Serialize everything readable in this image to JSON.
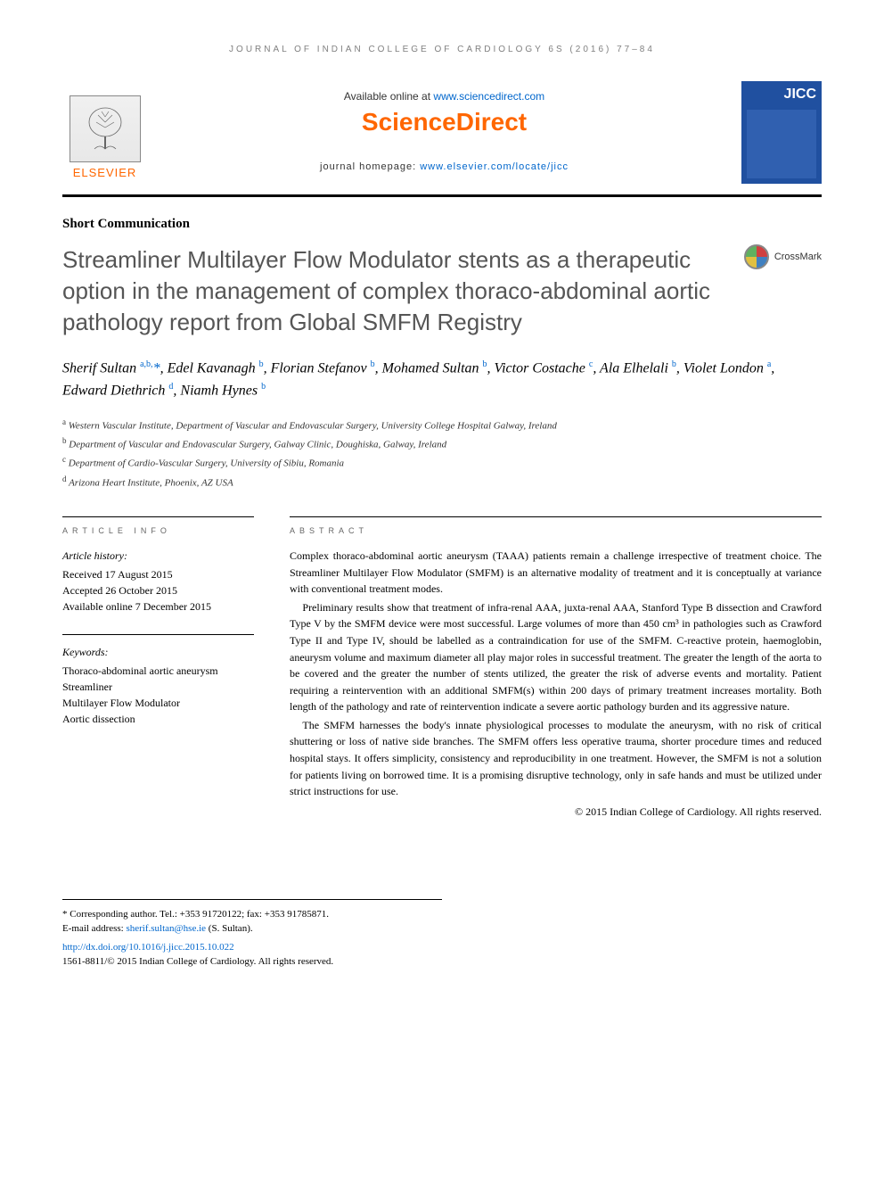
{
  "running_head": "JOURNAL OF INDIAN COLLEGE OF CARDIOLOGY 6S (2016) 77–84",
  "header": {
    "elsevier": "ELSEVIER",
    "available_prefix": "Available online at ",
    "available_link": "www.sciencedirect.com",
    "sciencedirect": "ScienceDirect",
    "homepage_prefix": "journal homepage: ",
    "homepage_link": "www.elsevier.com/locate/jicc",
    "jicc": "JICC"
  },
  "article_type": "Short Communication",
  "title": "Streamliner Multilayer Flow Modulator stents as a therapeutic option in the management of complex thoraco-abdominal aortic pathology report from Global SMFM Registry",
  "crossmark": "CrossMark",
  "authors_html": "Sherif Sultan <sup>a,b,</sup><span class='star'>*</span>, Edel Kavanagh <sup>b</sup>, Florian Stefanov <sup>b</sup>, Mohamed Sultan <sup>b</sup>, Victor Costache <sup>c</sup>, Ala Elhelali <sup>b</sup>, Violet London <sup>a</sup>, Edward Diethrich <sup>d</sup>, Niamh Hynes <sup>b</sup>",
  "affiliations": {
    "a": "Western Vascular Institute, Department of Vascular and Endovascular Surgery, University College Hospital Galway, Ireland",
    "b": "Department of Vascular and Endovascular Surgery, Galway Clinic, Doughiska, Galway, Ireland",
    "c": "Department of Cardio-Vascular Surgery, University of Sibiu, Romania",
    "d": "Arizona Heart Institute, Phoenix, AZ USA"
  },
  "info": {
    "heading": "ARTICLE INFO",
    "history_label": "Article history:",
    "received": "Received 17 August 2015",
    "accepted": "Accepted 26 October 2015",
    "online": "Available online 7 December 2015",
    "keywords_label": "Keywords:",
    "keywords": [
      "Thoraco-abdominal aortic aneurysm",
      "Streamliner",
      "Multilayer Flow Modulator",
      "Aortic dissection"
    ]
  },
  "abstract": {
    "heading": "ABSTRACT",
    "p1": "Complex thoraco-abdominal aortic aneurysm (TAAA) patients remain a challenge irrespective of treatment choice. The Streamliner Multilayer Flow Modulator (SMFM) is an alternative modality of treatment and it is conceptually at variance with conventional treatment modes.",
    "p2": "Preliminary results show that treatment of infra-renal AAA, juxta-renal AAA, Stanford Type B dissection and Crawford Type V by the SMFM device were most successful. Large volumes of more than 450 cm³ in pathologies such as Crawford Type II and Type IV, should be labelled as a contraindication for use of the SMFM. C-reactive protein, haemoglobin, aneurysm volume and maximum diameter all play major roles in successful treatment. The greater the length of the aorta to be covered and the greater the number of stents utilized, the greater the risk of adverse events and mortality. Patient requiring a reintervention with an additional SMFM(s) within 200 days of primary treatment increases mortality. Both length of the pathology and rate of reintervention indicate a severe aortic pathology burden and its aggressive nature.",
    "p3": "The SMFM harnesses the body's innate physiological processes to modulate the aneurysm, with no risk of critical shuttering or loss of native side branches. The SMFM offers less operative trauma, shorter procedure times and reduced hospital stays. It offers simplicity, consistency and reproducibility in one treatment. However, the SMFM is not a solution for patients living on borrowed time. It is a promising disruptive technology, only in safe hands and must be utilized under strict instructions for use.",
    "copyright": "© 2015 Indian College of Cardiology. All rights reserved."
  },
  "footer": {
    "corresponding": "* Corresponding author. Tel.: +353 91720122; fax: +353 91785871.",
    "email_label": "E-mail address: ",
    "email": "sherif.sultan@hse.ie",
    "email_suffix": " (S. Sultan).",
    "doi": "http://dx.doi.org/10.1016/j.jicc.2015.10.022",
    "issn_line": "1561-8811/© 2015 Indian College of Cardiology. All rights reserved."
  },
  "colors": {
    "orange": "#ff6600",
    "link": "#0066cc",
    "title_gray": "#555555",
    "jicc_bg": "#2050a0"
  }
}
